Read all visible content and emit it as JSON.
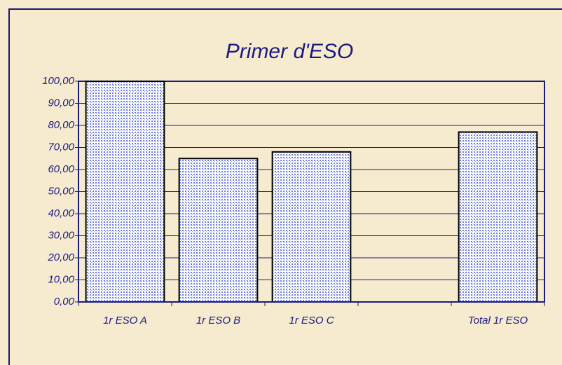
{
  "chart_data": {
    "type": "bar",
    "title": "Primer d'ESO",
    "categories": [
      "1r ESO A",
      "1r ESO B",
      "1r ESO C",
      null,
      "Total 1r ESO"
    ],
    "values": [
      100,
      65,
      68,
      null,
      77
    ],
    "color": "#6f7fd8",
    "ylim": [
      0,
      100
    ],
    "yticks": [
      {
        "value": 0,
        "label": "0,00"
      },
      {
        "value": 10,
        "label": "10,00"
      },
      {
        "value": 20,
        "label": "20,00"
      },
      {
        "value": 30,
        "label": "30,00"
      },
      {
        "value": 40,
        "label": "40,00"
      },
      {
        "value": 50,
        "label": "50,00"
      },
      {
        "value": 60,
        "label": "60,00"
      },
      {
        "value": 70,
        "label": "70,00"
      },
      {
        "value": 80,
        "label": "80,00"
      },
      {
        "value": 90,
        "label": "90,00"
      },
      {
        "value": 100,
        "label": "100,00"
      }
    ],
    "grid": true
  }
}
